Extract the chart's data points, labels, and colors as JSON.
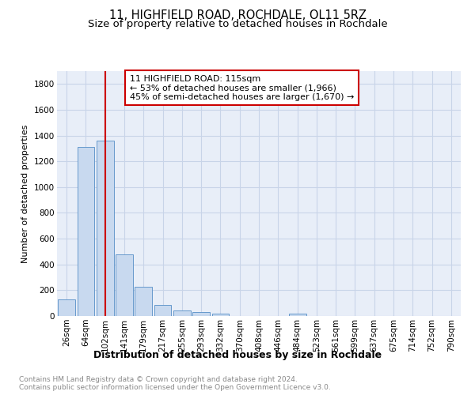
{
  "title": "11, HIGHFIELD ROAD, ROCHDALE, OL11 5RZ",
  "subtitle": "Size of property relative to detached houses in Rochdale",
  "xlabel": "Distribution of detached houses by size in Rochdale",
  "ylabel": "Number of detached properties",
  "categories": [
    "26sqm",
    "64sqm",
    "102sqm",
    "141sqm",
    "179sqm",
    "217sqm",
    "255sqm",
    "293sqm",
    "332sqm",
    "370sqm",
    "408sqm",
    "446sqm",
    "484sqm",
    "523sqm",
    "561sqm",
    "599sqm",
    "637sqm",
    "675sqm",
    "714sqm",
    "752sqm",
    "790sqm"
  ],
  "values": [
    130,
    1310,
    1360,
    480,
    225,
    85,
    45,
    28,
    20,
    0,
    0,
    0,
    20,
    0,
    0,
    0,
    0,
    0,
    0,
    0,
    0
  ],
  "bar_color": "#c8d9ef",
  "bar_edge_color": "#6699cc",
  "property_line_x": 2.0,
  "annotation_text": "11 HIGHFIELD ROAD: 115sqm\n← 53% of detached houses are smaller (1,966)\n45% of semi-detached houses are larger (1,670) →",
  "annotation_box_color": "#ffffff",
  "annotation_box_edge_color": "#cc0000",
  "red_line_color": "#cc0000",
  "ylim": [
    0,
    1900
  ],
  "yticks": [
    0,
    200,
    400,
    600,
    800,
    1000,
    1200,
    1400,
    1600,
    1800
  ],
  "grid_color": "#c8d4e8",
  "background_color": "#e8eef8",
  "footer_text": "Contains HM Land Registry data © Crown copyright and database right 2024.\nContains public sector information licensed under the Open Government Licence v3.0.",
  "title_fontsize": 10.5,
  "subtitle_fontsize": 9.5,
  "xlabel_fontsize": 9,
  "ylabel_fontsize": 8,
  "tick_fontsize": 7.5,
  "annotation_fontsize": 8,
  "footer_fontsize": 6.5
}
